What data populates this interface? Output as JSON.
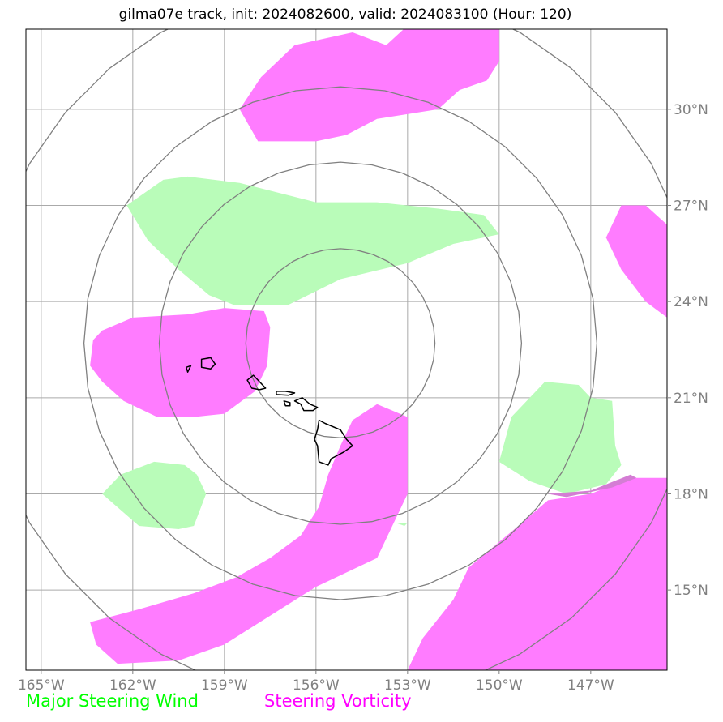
{
  "title": "gilma07e track, init: 2024082600, valid: 2024083100 (Hour: 120)",
  "map": {
    "lon_range": [
      -165.5,
      -144.5
    ],
    "lat_range": [
      12.5,
      32.5
    ],
    "lon_ticks": [
      {
        "value": -165,
        "label": "165°W"
      },
      {
        "value": -162,
        "label": "162°W"
      },
      {
        "value": -159,
        "label": "159°W"
      },
      {
        "value": -156,
        "label": "156°W"
      },
      {
        "value": -153,
        "label": "153°W"
      },
      {
        "value": -150,
        "label": "150°W"
      },
      {
        "value": -147,
        "label": "147°W"
      }
    ],
    "lat_ticks": [
      {
        "value": 15,
        "label": "15°N"
      },
      {
        "value": 18,
        "label": "18°N"
      },
      {
        "value": 21,
        "label": "21°N"
      },
      {
        "value": 24,
        "label": "24°N"
      },
      {
        "value": 27,
        "label": "27°N"
      },
      {
        "value": 30,
        "label": "30°N"
      }
    ],
    "range_ring_center": {
      "lon": -155.2,
      "lat": 22.7
    },
    "range_ring_radii_deg_lat": [
      2.95,
      5.65,
      8.0,
      11.2
    ],
    "colors": {
      "steering_wind": "#b9fcb9",
      "steering_vorticity": "#ff7cff",
      "vorticity_overlap": "#d47dd4",
      "gridline": "#aaaaaa",
      "ring": "#808080",
      "coast": "#000000"
    }
  },
  "steering_wind_regions": [
    {
      "name": "north-central",
      "points": [
        [
          -162.2,
          27.0
        ],
        [
          -161.0,
          27.8
        ],
        [
          -160.2,
          27.9
        ],
        [
          -158.5,
          27.7
        ],
        [
          -156.0,
          27.1
        ],
        [
          -154.0,
          27.1
        ],
        [
          -152.0,
          26.9
        ],
        [
          -150.5,
          26.7
        ],
        [
          -150.0,
          26.1
        ],
        [
          -151.5,
          25.8
        ],
        [
          -153.0,
          25.2
        ],
        [
          -155.2,
          24.7
        ],
        [
          -156.9,
          23.9
        ],
        [
          -158.7,
          23.9
        ],
        [
          -159.5,
          24.2
        ],
        [
          -160.5,
          25.0
        ],
        [
          -161.5,
          25.9
        ]
      ]
    },
    {
      "name": "southwest",
      "points": [
        [
          -163.0,
          18.0
        ],
        [
          -162.4,
          18.6
        ],
        [
          -161.3,
          19.0
        ],
        [
          -160.3,
          18.9
        ],
        [
          -159.9,
          18.6
        ],
        [
          -159.6,
          18.0
        ],
        [
          -160.0,
          17.0
        ],
        [
          -160.5,
          16.9
        ],
        [
          -161.8,
          17.0
        ]
      ]
    },
    {
      "name": "east",
      "points": [
        [
          -150.0,
          19.0
        ],
        [
          -149.6,
          20.4
        ],
        [
          -148.5,
          21.5
        ],
        [
          -147.4,
          21.4
        ],
        [
          -147.0,
          21.0
        ],
        [
          -146.3,
          20.9
        ],
        [
          -146.2,
          19.5
        ],
        [
          -146.0,
          18.9
        ],
        [
          -146.5,
          18.3
        ],
        [
          -147.8,
          18.0
        ],
        [
          -149.0,
          18.4
        ]
      ]
    },
    {
      "name": "sliver",
      "points": [
        [
          -153.4,
          17.1
        ],
        [
          -153.0,
          17.1
        ],
        [
          -153.1,
          17.0
        ]
      ]
    }
  ],
  "steering_vorticity_regions": [
    {
      "name": "north",
      "points": [
        [
          -158.5,
          30.0
        ],
        [
          -157.8,
          31.0
        ],
        [
          -156.7,
          32.0
        ],
        [
          -154.8,
          32.4
        ],
        [
          -153.7,
          32.0
        ],
        [
          -152.9,
          32.7
        ],
        [
          -150.0,
          32.5
        ],
        [
          -150.0,
          31.5
        ],
        [
          -150.4,
          30.9
        ],
        [
          -151.3,
          30.6
        ],
        [
          -152.0,
          30.0
        ],
        [
          -154.0,
          29.7
        ],
        [
          -155.0,
          29.2
        ],
        [
          -156.0,
          29.0
        ],
        [
          -157.9,
          29.0
        ]
      ]
    },
    {
      "name": "west",
      "points": [
        [
          -163.3,
          22.8
        ],
        [
          -163.0,
          23.1
        ],
        [
          -162.0,
          23.5
        ],
        [
          -160.2,
          23.6
        ],
        [
          -159.0,
          23.8
        ],
        [
          -157.7,
          23.7
        ],
        [
          -157.5,
          23.2
        ],
        [
          -157.6,
          22.0
        ],
        [
          -158.0,
          21.2
        ],
        [
          -159.0,
          20.5
        ],
        [
          -160.0,
          20.4
        ],
        [
          -161.2,
          20.4
        ],
        [
          -162.3,
          20.9
        ],
        [
          -163.0,
          21.5
        ],
        [
          -163.4,
          22.0
        ]
      ]
    },
    {
      "name": "central-band",
      "points": [
        [
          -154.8,
          20.3
        ],
        [
          -154.0,
          20.8
        ],
        [
          -153.0,
          20.4
        ],
        [
          -153.0,
          18.0
        ],
        [
          -153.5,
          17.0
        ],
        [
          -154.0,
          16.0
        ],
        [
          -156.0,
          15.1
        ],
        [
          -157.0,
          14.5
        ],
        [
          -159.0,
          13.3
        ],
        [
          -160.5,
          12.8
        ],
        [
          -162.5,
          12.7
        ],
        [
          -163.2,
          13.3
        ],
        [
          -163.4,
          14.0
        ],
        [
          -161.8,
          14.4
        ],
        [
          -160.0,
          14.9
        ],
        [
          -158.6,
          15.4
        ],
        [
          -157.5,
          16.0
        ],
        [
          -156.5,
          16.7
        ],
        [
          -155.9,
          17.6
        ],
        [
          -155.6,
          18.6
        ],
        [
          -155.2,
          19.5
        ]
      ]
    },
    {
      "name": "southeast",
      "points": [
        [
          -153.0,
          12.5
        ],
        [
          -152.5,
          13.5
        ],
        [
          -151.5,
          14.7
        ],
        [
          -151.0,
          15.7
        ],
        [
          -150.5,
          16.1
        ],
        [
          -149.5,
          16.9
        ],
        [
          -148.4,
          17.8
        ],
        [
          -147.0,
          18.0
        ],
        [
          -145.7,
          18.5
        ],
        [
          -144.5,
          18.5
        ],
        [
          -144.5,
          12.5
        ],
        [
          -146.5,
          12.5
        ]
      ]
    },
    {
      "name": "northeast",
      "points": [
        [
          -146.5,
          26.0
        ],
        [
          -146.0,
          27.0
        ],
        [
          -145.2,
          27.0
        ],
        [
          -144.5,
          26.4
        ],
        [
          -144.5,
          23.5
        ],
        [
          -145.2,
          24.0
        ],
        [
          -146.0,
          25.0
        ]
      ]
    }
  ],
  "vorticity_overlap_region": {
    "points": [
      [
        -148.4,
        18.0
      ],
      [
        -147.0,
        18.1
      ],
      [
        -145.7,
        18.6
      ],
      [
        -145.5,
        18.5
      ],
      [
        -146.3,
        18.2
      ],
      [
        -147.8,
        17.9
      ]
    ]
  },
  "islands": [
    {
      "name": "hawaii",
      "points": [
        [
          -155.9,
          20.3
        ],
        [
          -155.7,
          20.2
        ],
        [
          -155.2,
          20.0
        ],
        [
          -155.0,
          19.7
        ],
        [
          -154.8,
          19.5
        ],
        [
          -155.1,
          19.3
        ],
        [
          -155.5,
          19.1
        ],
        [
          -155.6,
          18.9
        ],
        [
          -155.9,
          19.0
        ],
        [
          -155.95,
          19.5
        ],
        [
          -156.05,
          19.7
        ],
        [
          -155.95,
          20.0
        ]
      ]
    },
    {
      "name": "maui",
      "points": [
        [
          -156.7,
          20.9
        ],
        [
          -156.45,
          21.0
        ],
        [
          -156.2,
          20.8
        ],
        [
          -155.95,
          20.7
        ],
        [
          -156.1,
          20.6
        ],
        [
          -156.4,
          20.6
        ],
        [
          -156.5,
          20.8
        ]
      ]
    },
    {
      "name": "molokai",
      "points": [
        [
          -157.3,
          21.2
        ],
        [
          -157.0,
          21.2
        ],
        [
          -156.7,
          21.15
        ],
        [
          -156.9,
          21.08
        ],
        [
          -157.3,
          21.1
        ]
      ]
    },
    {
      "name": "lanai",
      "points": [
        [
          -157.05,
          20.9
        ],
        [
          -156.85,
          20.85
        ],
        [
          -156.85,
          20.75
        ],
        [
          -157.0,
          20.75
        ]
      ]
    },
    {
      "name": "oahu",
      "points": [
        [
          -158.25,
          21.55
        ],
        [
          -158.05,
          21.7
        ],
        [
          -157.8,
          21.45
        ],
        [
          -157.65,
          21.3
        ],
        [
          -157.85,
          21.25
        ],
        [
          -158.1,
          21.3
        ]
      ]
    },
    {
      "name": "kauai",
      "points": [
        [
          -159.75,
          22.2
        ],
        [
          -159.45,
          22.25
        ],
        [
          -159.3,
          22.05
        ],
        [
          -159.45,
          21.9
        ],
        [
          -159.75,
          21.95
        ]
      ]
    },
    {
      "name": "niihau",
      "points": [
        [
          -160.25,
          21.95
        ],
        [
          -160.1,
          22.0
        ],
        [
          -160.2,
          21.8
        ]
      ]
    }
  ],
  "legend": {
    "wind_label": "Major Steering Wind",
    "wind_color": "#00ff00",
    "vorticity_label": "Steering Vorticity",
    "vorticity_color": "#ff00ff"
  }
}
